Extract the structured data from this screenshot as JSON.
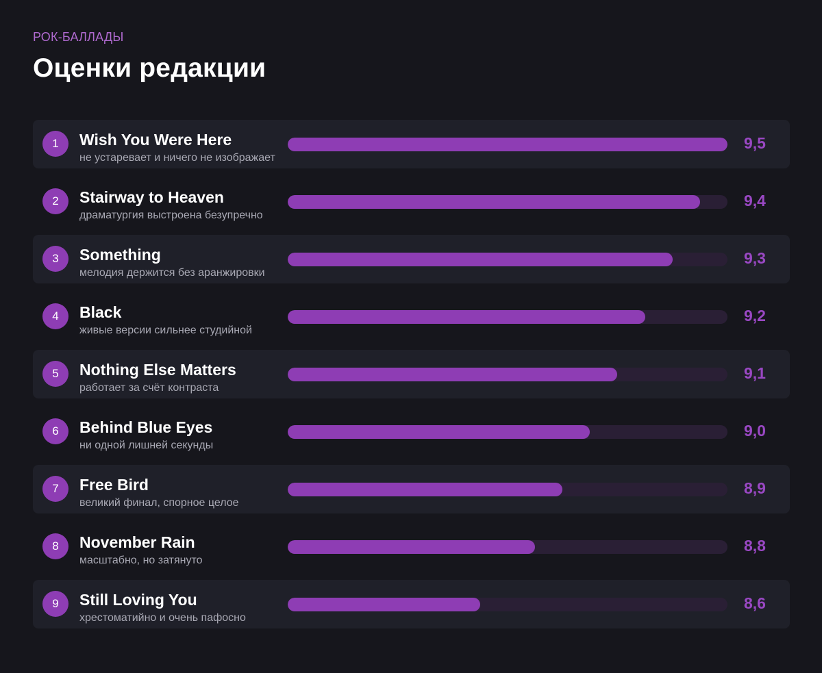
{
  "header": {
    "eyebrow": "РОК-БАЛЛАДЫ",
    "title": "Оценки редакции"
  },
  "colors": {
    "background": "#16161c",
    "row_alt": "#1f2029",
    "accent": "#8e3db4",
    "track": "#2a1f35",
    "score": "#9a48c4"
  },
  "chart_data": {
    "type": "bar",
    "orientation": "horizontal",
    "grid": false,
    "categories": [
      "Wish You Were Here",
      "Stairway to Heaven",
      "Something",
      "Black",
      "Nothing Else Matters",
      "Behind Blue Eyes",
      "Free Bird",
      "November Rain",
      "Still Loving You"
    ],
    "values": [
      9.5,
      9.4,
      9.3,
      9.2,
      9.1,
      9.0,
      8.9,
      8.8,
      8.6
    ],
    "xlim": [
      7.9,
      9.5
    ],
    "items": [
      {
        "rank": "1",
        "name": "Wish You Were Here",
        "note": "не устаревает и ничего не изображает",
        "value": 9.5,
        "score_label": "9,5"
      },
      {
        "rank": "2",
        "name": "Stairway to Heaven",
        "note": "драматургия выстроена безупречно",
        "value": 9.4,
        "score_label": "9,4"
      },
      {
        "rank": "3",
        "name": "Something",
        "note": "мелодия держится без аранжировки",
        "value": 9.3,
        "score_label": "9,3"
      },
      {
        "rank": "4",
        "name": "Black",
        "note": "живые версии сильнее студийной",
        "value": 9.2,
        "score_label": "9,2"
      },
      {
        "rank": "5",
        "name": "Nothing Else Matters",
        "note": "работает за счёт контраста",
        "value": 9.1,
        "score_label": "9,1"
      },
      {
        "rank": "6",
        "name": "Behind Blue Eyes",
        "note": "ни одной лишней секунды",
        "value": 9.0,
        "score_label": "9,0"
      },
      {
        "rank": "7",
        "name": "Free Bird",
        "note": "великий финал, спорное целое",
        "value": 8.9,
        "score_label": "8,9"
      },
      {
        "rank": "8",
        "name": "November Rain",
        "note": "масштабно, но затянуто",
        "value": 8.8,
        "score_label": "8,8"
      },
      {
        "rank": "9",
        "name": "Still Loving You",
        "note": "хрестоматийно и очень пафосно",
        "value": 8.6,
        "score_label": "8,6"
      }
    ]
  }
}
